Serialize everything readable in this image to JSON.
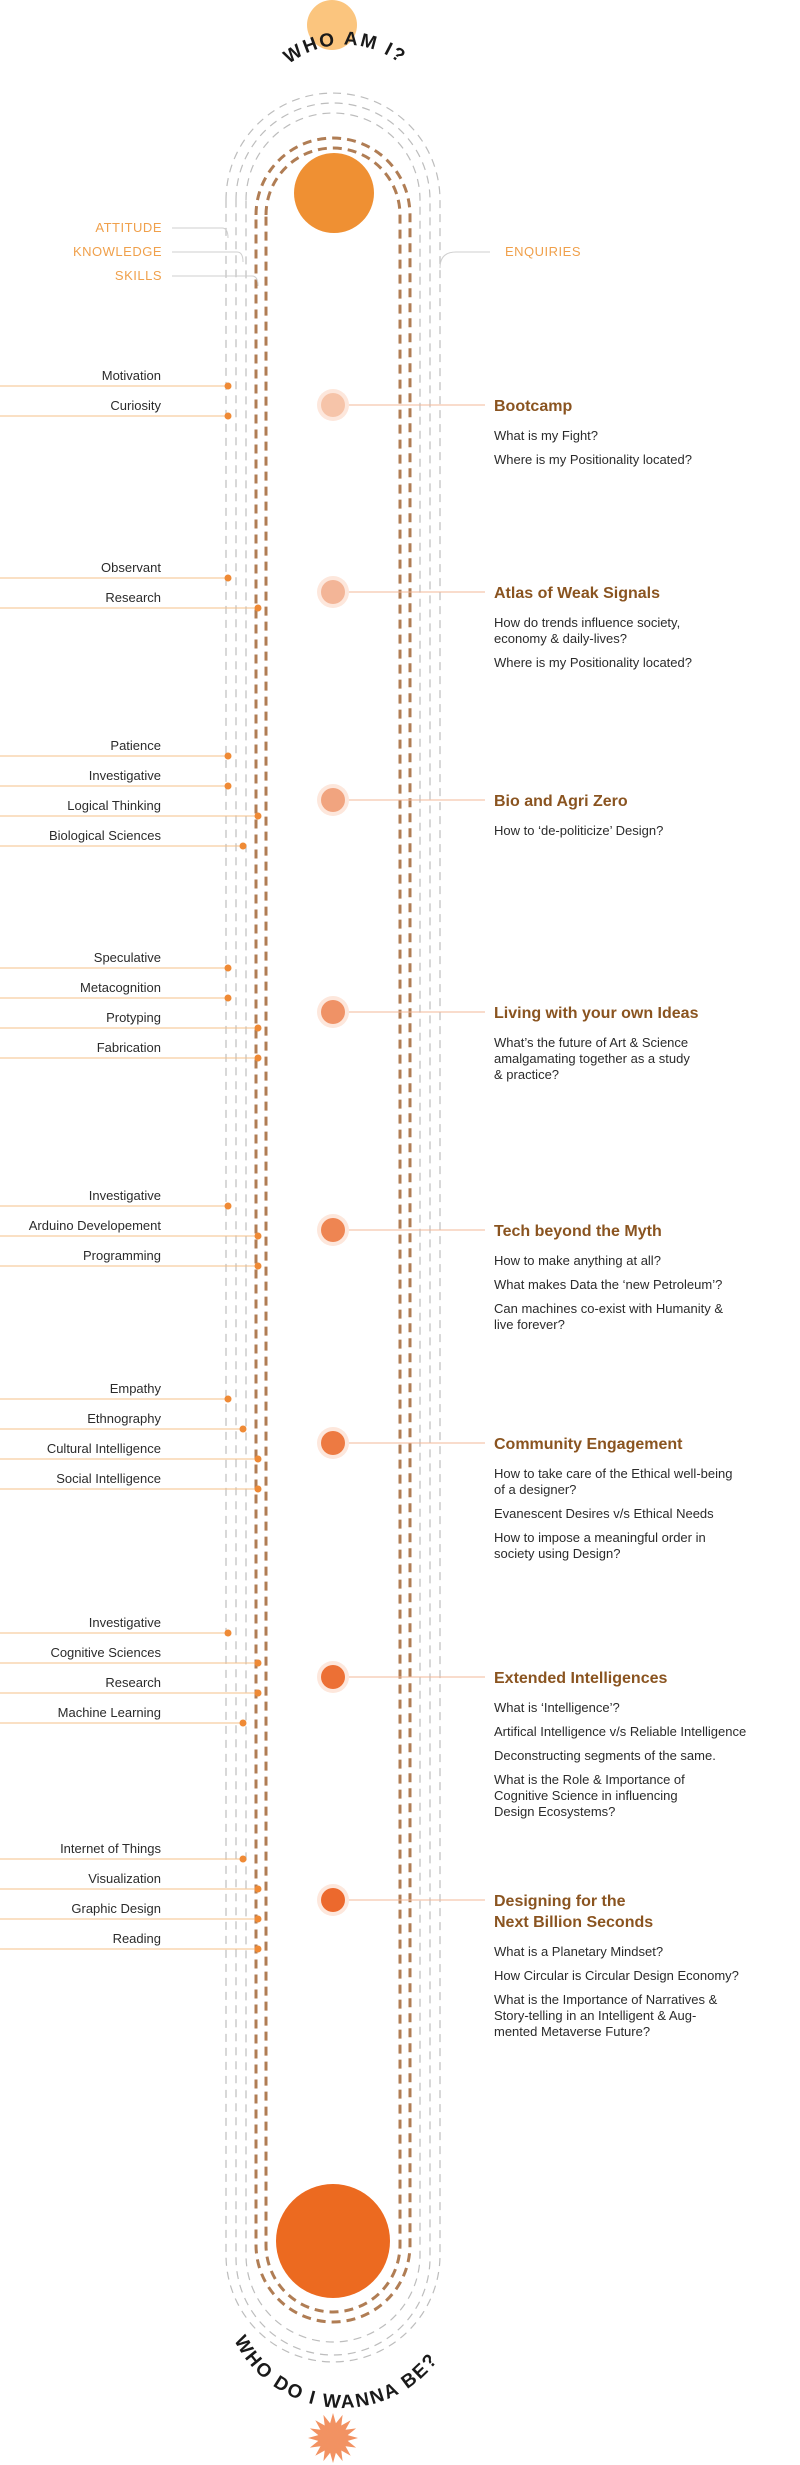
{
  "header": {
    "title": "WHO AM I?"
  },
  "footer": {
    "title": "WHO DO I WANNA BE?"
  },
  "legend": {
    "left": [
      "ATTITUDE",
      "KNOWLEDGE",
      "SKILLS"
    ],
    "right": "ENQUIRIES"
  },
  "colors": {
    "track": "#b07d54",
    "legend": "#f0a04b",
    "skill_line": "#f5c08a",
    "title_text": "#8a5420",
    "top_circle": "#fbc57e",
    "mid_circle": "#ef9033",
    "bottom_circle": "#ec6a20",
    "sun": "#f29262"
  },
  "stations": [
    {
      "title": [
        "Bootcamp"
      ],
      "node_color": "#f6c4a9",
      "questions": [
        [
          "What is my Fight?"
        ],
        [
          "Where is my Positionality located?"
        ]
      ],
      "skills": [
        {
          "label": "Motivation",
          "lane": 0
        },
        {
          "label": "Curiosity",
          "lane": 0
        }
      ]
    },
    {
      "title": [
        "Atlas of Weak Signals"
      ],
      "node_color": "#f3b597",
      "questions": [
        [
          "How do trends influence society,",
          "economy & daily-lives?"
        ],
        [
          "Where is my Positionality located?"
        ]
      ],
      "skills": [
        {
          "label": "Observant",
          "lane": 0
        },
        {
          "label": "Research",
          "lane": 2
        }
      ]
    },
    {
      "title": [
        "Bio and Agri Zero"
      ],
      "node_color": "#f1a47f",
      "questions": [
        [
          "How to ‘de-politicize’ Design?"
        ]
      ],
      "skills": [
        {
          "label": "Patience",
          "lane": 0
        },
        {
          "label": "Investigative",
          "lane": 0
        },
        {
          "label": "Logical Thinking",
          "lane": 2
        },
        {
          "label": "Biological Sciences",
          "lane": 1
        }
      ]
    },
    {
      "title": [
        "Living with your own Ideas"
      ],
      "node_color": "#ef9266",
      "questions": [
        [
          "What’s the future of Art & Science",
          "amalgamating together as a study",
          "& practice?"
        ]
      ],
      "skills": [
        {
          "label": "Speculative",
          "lane": 0
        },
        {
          "label": "Metacognition",
          "lane": 0
        },
        {
          "label": "Protyping",
          "lane": 2
        },
        {
          "label": "Fabrication",
          "lane": 2
        }
      ]
    },
    {
      "title": [
        "Tech beyond the Myth"
      ],
      "node_color": "#ee8552",
      "questions": [
        [
          "How to make anything at all?"
        ],
        [
          "What makes Data the ‘new Petroleum’?"
        ],
        [
          "Can machines co-exist with Humanity &",
          "live forever?"
        ]
      ],
      "skills": [
        {
          "label": "Investigative",
          "lane": 0
        },
        {
          "label": "Arduino Developement",
          "lane": 2
        },
        {
          "label": "Programming",
          "lane": 2
        }
      ]
    },
    {
      "title": [
        "Community Engagement"
      ],
      "node_color": "#ed7a42",
      "questions": [
        [
          "How to take care of the Ethical well-being",
          "of a designer?"
        ],
        [
          "Evanescent Desires v/s Ethical Needs"
        ],
        [
          "How to impose a meaningful order in",
          "society using Design?"
        ]
      ],
      "skills": [
        {
          "label": "Empathy",
          "lane": 0
        },
        {
          "label": "Ethnography",
          "lane": 1
        },
        {
          "label": "Cultural Intelligence",
          "lane": 2
        },
        {
          "label": "Social Intelligence",
          "lane": 2
        }
      ]
    },
    {
      "title": [
        "Extended Intelligences"
      ],
      "node_color": "#ec7035",
      "questions": [
        [
          "What is ‘Intelligence’?"
        ],
        [
          "Artifical Intelligence v/s Reliable Intelligence"
        ],
        [
          "Deconstructing segments of the same."
        ],
        [
          "What is the Role & Importance of",
          "Cognitive Science in influencing",
          "Design Ecosystems?"
        ]
      ],
      "skills": [
        {
          "label": "Investigative",
          "lane": 0
        },
        {
          "label": "Cognitive Sciences",
          "lane": 2
        },
        {
          "label": "Research",
          "lane": 2
        },
        {
          "label": "Machine Learning",
          "lane": 1
        }
      ]
    },
    {
      "title": [
        "Designing for the",
        "Next Billion Seconds"
      ],
      "node_color": "#ec692d",
      "questions": [
        [
          "What is a Planetary Mindset?"
        ],
        [
          "How Circular is Circular Design Economy?"
        ],
        [
          "What is the Importance of Narratives &",
          "Story-telling in an Intelligent & Aug-",
          "mented Metaverse Future?"
        ]
      ],
      "skills": [
        {
          "label": "Internet of Things",
          "lane": 1
        },
        {
          "label": "Visualization",
          "lane": 2
        },
        {
          "label": "Graphic Design",
          "lane": 2
        },
        {
          "label": "Reading",
          "lane": 2
        }
      ]
    }
  ]
}
